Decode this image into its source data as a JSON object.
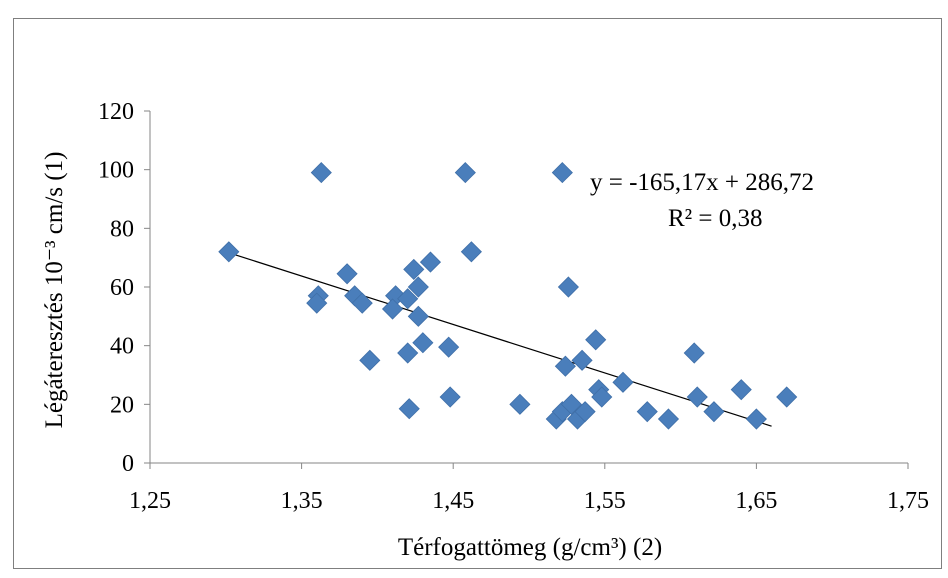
{
  "chart_data": {
    "type": "scatter",
    "title": "",
    "xlabel": "Térfogattömeg (g/cm³) (2)",
    "ylabel": "Légáteresztés 10⁻³ cm/s (1)",
    "xlim": [
      1.25,
      1.75
    ],
    "ylim": [
      0,
      120
    ],
    "x_ticks": [
      1.25,
      1.35,
      1.45,
      1.55,
      1.65,
      1.75
    ],
    "x_tick_labels": [
      "1,25",
      "1,35",
      "1,45",
      "1,55",
      "1,65",
      "1,75"
    ],
    "y_ticks": [
      0,
      20,
      40,
      60,
      80,
      100,
      120
    ],
    "y_tick_labels": [
      "0",
      "20",
      "40",
      "60",
      "80",
      "100",
      "120"
    ],
    "grid": false,
    "legend": "none",
    "marker_color": "#4a7ebb",
    "points": [
      [
        1.302,
        72
      ],
      [
        1.363,
        99
      ],
      [
        1.361,
        57
      ],
      [
        1.36,
        54.5
      ],
      [
        1.38,
        64.5
      ],
      [
        1.385,
        57
      ],
      [
        1.39,
        54.5
      ],
      [
        1.412,
        57
      ],
      [
        1.41,
        52.5
      ],
      [
        1.42,
        56
      ],
      [
        1.424,
        66
      ],
      [
        1.427,
        60
      ],
      [
        1.435,
        68.5
      ],
      [
        1.427,
        50
      ],
      [
        1.395,
        35
      ],
      [
        1.42,
        37.5
      ],
      [
        1.43,
        41
      ],
      [
        1.447,
        39.5
      ],
      [
        1.421,
        18.5
      ],
      [
        1.448,
        22.5
      ],
      [
        1.458,
        99
      ],
      [
        1.462,
        72
      ],
      [
        1.494,
        20
      ],
      [
        1.518,
        15
      ],
      [
        1.522,
        17.5
      ],
      [
        1.522,
        99
      ],
      [
        1.524,
        33
      ],
      [
        1.526,
        60
      ],
      [
        1.528,
        20
      ],
      [
        1.532,
        15
      ],
      [
        1.535,
        35
      ],
      [
        1.537,
        17.5
      ],
      [
        1.544,
        42
      ],
      [
        1.546,
        25
      ],
      [
        1.548,
        22.5
      ],
      [
        1.562,
        27.5
      ],
      [
        1.578,
        17.5
      ],
      [
        1.592,
        15
      ],
      [
        1.609,
        37.5
      ],
      [
        1.611,
        22.5
      ],
      [
        1.622,
        17.5
      ],
      [
        1.64,
        25
      ],
      [
        1.65,
        15
      ],
      [
        1.67,
        22.5
      ]
    ],
    "trendline": {
      "slope": -165.17,
      "intercept": 286.72,
      "x_range": [
        1.3,
        1.66
      ],
      "color": "#000000"
    },
    "annotations": {
      "equation": "y = -165,17x  + 286,72",
      "r_squared": "R² = 0,38"
    }
  }
}
